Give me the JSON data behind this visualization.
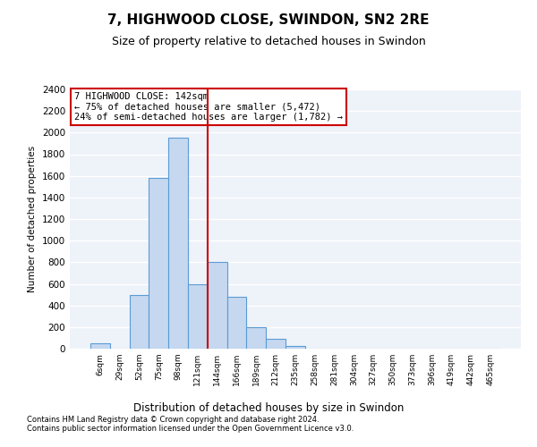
{
  "title": "7, HIGHWOOD CLOSE, SWINDON, SN2 2RE",
  "subtitle": "Size of property relative to detached houses in Swindon",
  "xlabel": "Distribution of detached houses by size in Swindon",
  "ylabel": "Number of detached properties",
  "footnote1": "Contains HM Land Registry data © Crown copyright and database right 2024.",
  "footnote2": "Contains public sector information licensed under the Open Government Licence v3.0.",
  "annotation_line1": "7 HIGHWOOD CLOSE: 142sqm",
  "annotation_line2": "← 75% of detached houses are smaller (5,472)",
  "annotation_line3": "24% of semi-detached houses are larger (1,782) →",
  "bar_color": "#c5d8f0",
  "bar_edge_color": "#5b9bd5",
  "vline_color": "#cc0000",
  "categories": [
    "6sqm",
    "29sqm",
    "52sqm",
    "75sqm",
    "98sqm",
    "121sqm",
    "144sqm",
    "166sqm",
    "189sqm",
    "212sqm",
    "235sqm",
    "258sqm",
    "281sqm",
    "304sqm",
    "327sqm",
    "350sqm",
    "373sqm",
    "396sqm",
    "419sqm",
    "442sqm",
    "465sqm"
  ],
  "values": [
    50,
    0,
    500,
    1580,
    1950,
    600,
    800,
    480,
    200,
    90,
    25,
    0,
    0,
    0,
    0,
    0,
    0,
    0,
    0,
    0,
    0
  ],
  "ylim": [
    0,
    2400
  ],
  "yticks": [
    0,
    200,
    400,
    600,
    800,
    1000,
    1200,
    1400,
    1600,
    1800,
    2000,
    2200,
    2400
  ],
  "background_color": "#eef2f9",
  "grid_color": "#ffffff",
  "title_fontsize": 11,
  "subtitle_fontsize": 9,
  "annotation_box_color": "#ffffff",
  "annotation_box_edge": "#cc0000",
  "vline_index": 6
}
